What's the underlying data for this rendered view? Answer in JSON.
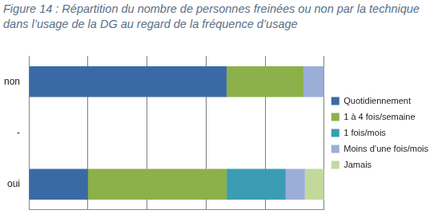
{
  "chart_data": {
    "type": "bar",
    "title": "Figure 14 : Répartition du nombre de personnes freinées ou non par la technique dans l’usage de la DG au regard de la fréquence d’usage",
    "orientation": "horizontal",
    "stacked": true,
    "categories": [
      "non",
      "-",
      "oui"
    ],
    "series": [
      {
        "name": "Quotidiennement",
        "color": "#3a6aa6",
        "values": [
          67,
          null,
          20
        ]
      },
      {
        "name": "1 à 4 fois/semaine",
        "color": "#8cb04a",
        "values": [
          26,
          null,
          47
        ]
      },
      {
        "name": "1 fois/mois",
        "color": "#3a9db4",
        "values": [
          0,
          null,
          20
        ]
      },
      {
        "name": "Moins d’une fois/mois",
        "color": "#9aaed8",
        "values": [
          7,
          null,
          6.5
        ]
      },
      {
        "name": "Jamais",
        "color": "#c3d99c",
        "values": [
          0,
          null,
          6.5
        ]
      }
    ],
    "xlim": [
      0,
      100
    ],
    "xticks": [
      0,
      20,
      40,
      60,
      80,
      100
    ],
    "grid": true,
    "legend": "right",
    "tick_labels": "y"
  }
}
